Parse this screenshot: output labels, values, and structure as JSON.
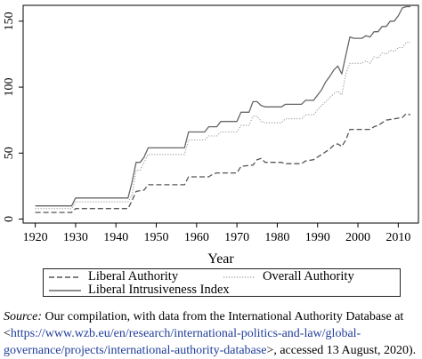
{
  "chart_data": {
    "type": "line",
    "xlabel": "Year",
    "ylabel": "",
    "xlim": [
      1917,
      2015
    ],
    "ylim": [
      -3,
      162
    ],
    "xticks": [
      1920,
      1930,
      1940,
      1950,
      1960,
      1970,
      1980,
      1990,
      2000,
      2010
    ],
    "yticks": [
      0,
      50,
      100,
      150
    ],
    "grid": false,
    "legend_position": "bottom",
    "series": [
      {
        "name": "Liberal Authority",
        "style": "dashed",
        "color": "#555555",
        "points": [
          [
            1920,
            5
          ],
          [
            1929,
            5
          ],
          [
            1930,
            8
          ],
          [
            1943,
            8
          ],
          [
            1944,
            14
          ],
          [
            1945,
            21
          ],
          [
            1947,
            22
          ],
          [
            1948,
            26
          ],
          [
            1957,
            26
          ],
          [
            1958,
            32
          ],
          [
            1963,
            32
          ],
          [
            1964,
            34
          ],
          [
            1965,
            35
          ],
          [
            1970,
            35
          ],
          [
            1971,
            40
          ],
          [
            1974,
            41
          ],
          [
            1975,
            45
          ],
          [
            1976,
            46
          ],
          [
            1977,
            43
          ],
          [
            1981,
            43
          ],
          [
            1982,
            42
          ],
          [
            1986,
            42
          ],
          [
            1987,
            44
          ],
          [
            1989,
            45
          ],
          [
            1990,
            47
          ],
          [
            1991,
            49
          ],
          [
            1992,
            51
          ],
          [
            1993,
            53
          ],
          [
            1994,
            56
          ],
          [
            1995,
            57
          ],
          [
            1996,
            55
          ],
          [
            1997,
            60
          ],
          [
            1998,
            68
          ],
          [
            2003,
            68
          ],
          [
            2004,
            70
          ],
          [
            2005,
            71
          ],
          [
            2006,
            73
          ],
          [
            2007,
            75
          ],
          [
            2009,
            76
          ],
          [
            2011,
            77
          ],
          [
            2012,
            80
          ],
          [
            2013,
            79
          ]
        ]
      },
      {
        "name": "Overall Authority",
        "style": "dotted",
        "color": "#999999",
        "points": [
          [
            1920,
            8
          ],
          [
            1929,
            8
          ],
          [
            1930,
            13
          ],
          [
            1943,
            13
          ],
          [
            1944,
            18
          ],
          [
            1945,
            37
          ],
          [
            1946,
            37
          ],
          [
            1947,
            43
          ],
          [
            1948,
            49
          ],
          [
            1957,
            49
          ],
          [
            1958,
            60
          ],
          [
            1962,
            60
          ],
          [
            1963,
            63
          ],
          [
            1965,
            63
          ],
          [
            1966,
            66
          ],
          [
            1970,
            66
          ],
          [
            1971,
            71
          ],
          [
            1973,
            71
          ],
          [
            1974,
            78
          ],
          [
            1975,
            78
          ],
          [
            1976,
            74
          ],
          [
            1977,
            73
          ],
          [
            1981,
            73
          ],
          [
            1982,
            76
          ],
          [
            1986,
            76
          ],
          [
            1987,
            79
          ],
          [
            1989,
            79
          ],
          [
            1990,
            83
          ],
          [
            1991,
            86
          ],
          [
            1992,
            89
          ],
          [
            1993,
            92
          ],
          [
            1994,
            95
          ],
          [
            1995,
            97
          ],
          [
            1996,
            94
          ],
          [
            1997,
            110
          ],
          [
            1998,
            118
          ],
          [
            2001,
            118
          ],
          [
            2002,
            120
          ],
          [
            2003,
            118
          ],
          [
            2004,
            123
          ],
          [
            2005,
            122
          ],
          [
            2006,
            126
          ],
          [
            2007,
            125
          ],
          [
            2008,
            128
          ],
          [
            2009,
            127
          ],
          [
            2010,
            130
          ],
          [
            2011,
            130
          ],
          [
            2012,
            134
          ],
          [
            2013,
            134
          ]
        ]
      },
      {
        "name": "Liberal Intrusiveness Index",
        "style": "solid",
        "color": "#666666",
        "points": [
          [
            1920,
            10
          ],
          [
            1929,
            10
          ],
          [
            1930,
            16
          ],
          [
            1943,
            16
          ],
          [
            1944,
            28
          ],
          [
            1945,
            43
          ],
          [
            1946,
            43
          ],
          [
            1947,
            47
          ],
          [
            1948,
            54
          ],
          [
            1957,
            54
          ],
          [
            1958,
            66
          ],
          [
            1962,
            66
          ],
          [
            1963,
            70
          ],
          [
            1965,
            70
          ],
          [
            1966,
            74
          ],
          [
            1970,
            74
          ],
          [
            1971,
            81
          ],
          [
            1973,
            81
          ],
          [
            1974,
            89
          ],
          [
            1975,
            89
          ],
          [
            1976,
            86
          ],
          [
            1977,
            85
          ],
          [
            1981,
            85
          ],
          [
            1982,
            87
          ],
          [
            1986,
            87
          ],
          [
            1987,
            90
          ],
          [
            1989,
            90
          ],
          [
            1990,
            94
          ],
          [
            1991,
            98
          ],
          [
            1992,
            104
          ],
          [
            1993,
            108
          ],
          [
            1994,
            113
          ],
          [
            1995,
            116
          ],
          [
            1996,
            110
          ],
          [
            1997,
            124
          ],
          [
            1998,
            138
          ],
          [
            1999,
            137
          ],
          [
            2001,
            137
          ],
          [
            2002,
            139
          ],
          [
            2003,
            138
          ],
          [
            2004,
            142
          ],
          [
            2005,
            142
          ],
          [
            2006,
            146
          ],
          [
            2007,
            146
          ],
          [
            2008,
            150
          ],
          [
            2009,
            150
          ],
          [
            2010,
            154
          ],
          [
            2011,
            160
          ],
          [
            2012,
            161
          ],
          [
            2013,
            161
          ]
        ]
      }
    ]
  },
  "legend": {
    "items": [
      "Liberal Authority",
      "Overall Authority",
      "Liberal Intrusiveness Index"
    ]
  },
  "source": {
    "label": "Source:",
    "text_before": " Our compilation, with data from the International Authority Database at <",
    "url": "https://www.wzb.eu/en/research/international-politics-and-law/global-governance/projects/international-authority-database",
    "text_after": ">, accessed 13 August, 2020)."
  }
}
